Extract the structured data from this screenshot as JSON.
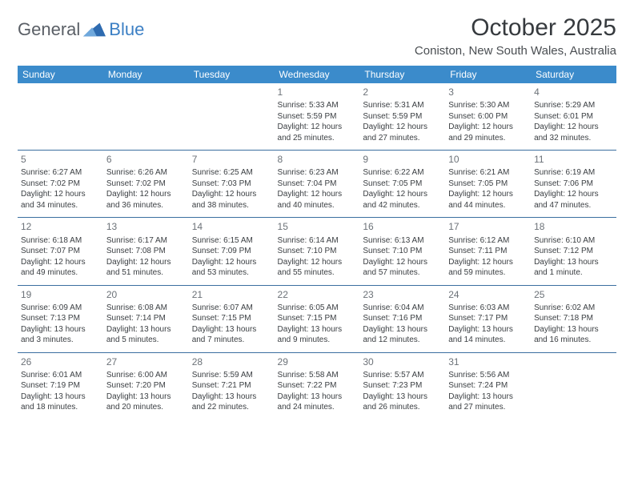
{
  "brand": {
    "part1": "General",
    "part2": "Blue"
  },
  "title": "October 2025",
  "subtitle": "Coniston, New South Wales, Australia",
  "colors": {
    "header_bg": "#3b8bcb",
    "header_text": "#ffffff",
    "row_border": "#3b6fa0",
    "text": "#3a3e42",
    "daynum": "#6c7278",
    "logo_gray": "#5a5f66",
    "logo_blue": "#3b7fc4"
  },
  "days_of_week": [
    "Sunday",
    "Monday",
    "Tuesday",
    "Wednesday",
    "Thursday",
    "Friday",
    "Saturday"
  ],
  "weeks": [
    [
      {
        "n": "",
        "sunrise": "",
        "sunset": "",
        "daylight": ""
      },
      {
        "n": "",
        "sunrise": "",
        "sunset": "",
        "daylight": ""
      },
      {
        "n": "",
        "sunrise": "",
        "sunset": "",
        "daylight": ""
      },
      {
        "n": "1",
        "sunrise": "Sunrise: 5:33 AM",
        "sunset": "Sunset: 5:59 PM",
        "daylight": "Daylight: 12 hours and 25 minutes."
      },
      {
        "n": "2",
        "sunrise": "Sunrise: 5:31 AM",
        "sunset": "Sunset: 5:59 PM",
        "daylight": "Daylight: 12 hours and 27 minutes."
      },
      {
        "n": "3",
        "sunrise": "Sunrise: 5:30 AM",
        "sunset": "Sunset: 6:00 PM",
        "daylight": "Daylight: 12 hours and 29 minutes."
      },
      {
        "n": "4",
        "sunrise": "Sunrise: 5:29 AM",
        "sunset": "Sunset: 6:01 PM",
        "daylight": "Daylight: 12 hours and 32 minutes."
      }
    ],
    [
      {
        "n": "5",
        "sunrise": "Sunrise: 6:27 AM",
        "sunset": "Sunset: 7:02 PM",
        "daylight": "Daylight: 12 hours and 34 minutes."
      },
      {
        "n": "6",
        "sunrise": "Sunrise: 6:26 AM",
        "sunset": "Sunset: 7:02 PM",
        "daylight": "Daylight: 12 hours and 36 minutes."
      },
      {
        "n": "7",
        "sunrise": "Sunrise: 6:25 AM",
        "sunset": "Sunset: 7:03 PM",
        "daylight": "Daylight: 12 hours and 38 minutes."
      },
      {
        "n": "8",
        "sunrise": "Sunrise: 6:23 AM",
        "sunset": "Sunset: 7:04 PM",
        "daylight": "Daylight: 12 hours and 40 minutes."
      },
      {
        "n": "9",
        "sunrise": "Sunrise: 6:22 AM",
        "sunset": "Sunset: 7:05 PM",
        "daylight": "Daylight: 12 hours and 42 minutes."
      },
      {
        "n": "10",
        "sunrise": "Sunrise: 6:21 AM",
        "sunset": "Sunset: 7:05 PM",
        "daylight": "Daylight: 12 hours and 44 minutes."
      },
      {
        "n": "11",
        "sunrise": "Sunrise: 6:19 AM",
        "sunset": "Sunset: 7:06 PM",
        "daylight": "Daylight: 12 hours and 47 minutes."
      }
    ],
    [
      {
        "n": "12",
        "sunrise": "Sunrise: 6:18 AM",
        "sunset": "Sunset: 7:07 PM",
        "daylight": "Daylight: 12 hours and 49 minutes."
      },
      {
        "n": "13",
        "sunrise": "Sunrise: 6:17 AM",
        "sunset": "Sunset: 7:08 PM",
        "daylight": "Daylight: 12 hours and 51 minutes."
      },
      {
        "n": "14",
        "sunrise": "Sunrise: 6:15 AM",
        "sunset": "Sunset: 7:09 PM",
        "daylight": "Daylight: 12 hours and 53 minutes."
      },
      {
        "n": "15",
        "sunrise": "Sunrise: 6:14 AM",
        "sunset": "Sunset: 7:10 PM",
        "daylight": "Daylight: 12 hours and 55 minutes."
      },
      {
        "n": "16",
        "sunrise": "Sunrise: 6:13 AM",
        "sunset": "Sunset: 7:10 PM",
        "daylight": "Daylight: 12 hours and 57 minutes."
      },
      {
        "n": "17",
        "sunrise": "Sunrise: 6:12 AM",
        "sunset": "Sunset: 7:11 PM",
        "daylight": "Daylight: 12 hours and 59 minutes."
      },
      {
        "n": "18",
        "sunrise": "Sunrise: 6:10 AM",
        "sunset": "Sunset: 7:12 PM",
        "daylight": "Daylight: 13 hours and 1 minute."
      }
    ],
    [
      {
        "n": "19",
        "sunrise": "Sunrise: 6:09 AM",
        "sunset": "Sunset: 7:13 PM",
        "daylight": "Daylight: 13 hours and 3 minutes."
      },
      {
        "n": "20",
        "sunrise": "Sunrise: 6:08 AM",
        "sunset": "Sunset: 7:14 PM",
        "daylight": "Daylight: 13 hours and 5 minutes."
      },
      {
        "n": "21",
        "sunrise": "Sunrise: 6:07 AM",
        "sunset": "Sunset: 7:15 PM",
        "daylight": "Daylight: 13 hours and 7 minutes."
      },
      {
        "n": "22",
        "sunrise": "Sunrise: 6:05 AM",
        "sunset": "Sunset: 7:15 PM",
        "daylight": "Daylight: 13 hours and 9 minutes."
      },
      {
        "n": "23",
        "sunrise": "Sunrise: 6:04 AM",
        "sunset": "Sunset: 7:16 PM",
        "daylight": "Daylight: 13 hours and 12 minutes."
      },
      {
        "n": "24",
        "sunrise": "Sunrise: 6:03 AM",
        "sunset": "Sunset: 7:17 PM",
        "daylight": "Daylight: 13 hours and 14 minutes."
      },
      {
        "n": "25",
        "sunrise": "Sunrise: 6:02 AM",
        "sunset": "Sunset: 7:18 PM",
        "daylight": "Daylight: 13 hours and 16 minutes."
      }
    ],
    [
      {
        "n": "26",
        "sunrise": "Sunrise: 6:01 AM",
        "sunset": "Sunset: 7:19 PM",
        "daylight": "Daylight: 13 hours and 18 minutes."
      },
      {
        "n": "27",
        "sunrise": "Sunrise: 6:00 AM",
        "sunset": "Sunset: 7:20 PM",
        "daylight": "Daylight: 13 hours and 20 minutes."
      },
      {
        "n": "28",
        "sunrise": "Sunrise: 5:59 AM",
        "sunset": "Sunset: 7:21 PM",
        "daylight": "Daylight: 13 hours and 22 minutes."
      },
      {
        "n": "29",
        "sunrise": "Sunrise: 5:58 AM",
        "sunset": "Sunset: 7:22 PM",
        "daylight": "Daylight: 13 hours and 24 minutes."
      },
      {
        "n": "30",
        "sunrise": "Sunrise: 5:57 AM",
        "sunset": "Sunset: 7:23 PM",
        "daylight": "Daylight: 13 hours and 26 minutes."
      },
      {
        "n": "31",
        "sunrise": "Sunrise: 5:56 AM",
        "sunset": "Sunset: 7:24 PM",
        "daylight": "Daylight: 13 hours and 27 minutes."
      },
      {
        "n": "",
        "sunrise": "",
        "sunset": "",
        "daylight": ""
      }
    ]
  ]
}
